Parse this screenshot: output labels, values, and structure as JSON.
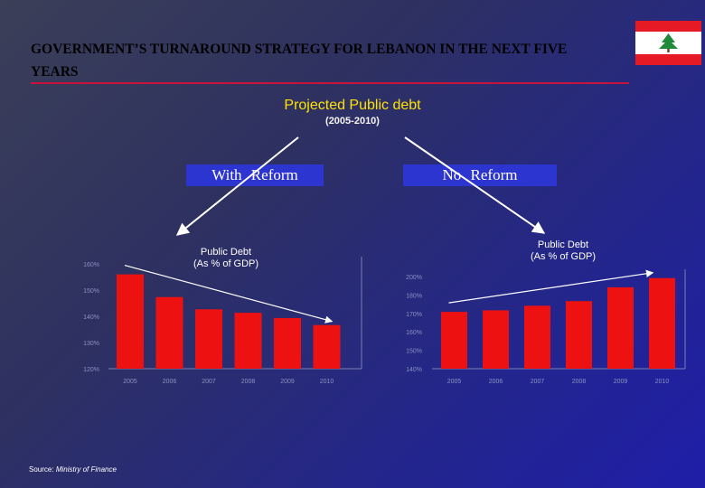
{
  "title": {
    "line1": "GOVERNMENT’S TURNAROUND STRATEGY FOR LEBANON IN THE NEXT FIVE",
    "line2": "YEARS"
  },
  "subtitle": "Projected Public debt",
  "period": "(2005-2010)",
  "options": {
    "with_reform": "With   Reform",
    "no_reform": "No   Reform"
  },
  "source": {
    "label": "Source:",
    "value": "Ministry of Finance"
  },
  "colors": {
    "bar": "#ee1111",
    "accent_rule": "#c8143c",
    "subtitle": "#ffe200",
    "option_box": "#2d35d0"
  },
  "chart_data": [
    {
      "type": "bar",
      "title": "Public Debt\n(As % of GDP)",
      "categories": [
        "2005",
        "2006",
        "2007",
        "2008",
        "2009",
        "2010"
      ],
      "values": [
        174,
        161,
        154,
        152,
        149,
        145
      ],
      "ylim": [
        120,
        180
      ],
      "yticks": [
        "120%",
        "130%",
        "140%",
        "150%",
        "160%"
      ],
      "trend": "decreasing"
    },
    {
      "type": "bar",
      "title": "Public Debt\n(As % of GDP)",
      "categories": [
        "2005",
        "2006",
        "2007",
        "2008",
        "2009",
        "2010"
      ],
      "values": [
        177,
        178,
        181,
        184,
        193,
        199
      ],
      "ylim": [
        140,
        200
      ],
      "yticks": [
        "140%",
        "150%",
        "160%",
        "170%",
        "180%",
        "200%"
      ],
      "trend": "increasing"
    }
  ]
}
